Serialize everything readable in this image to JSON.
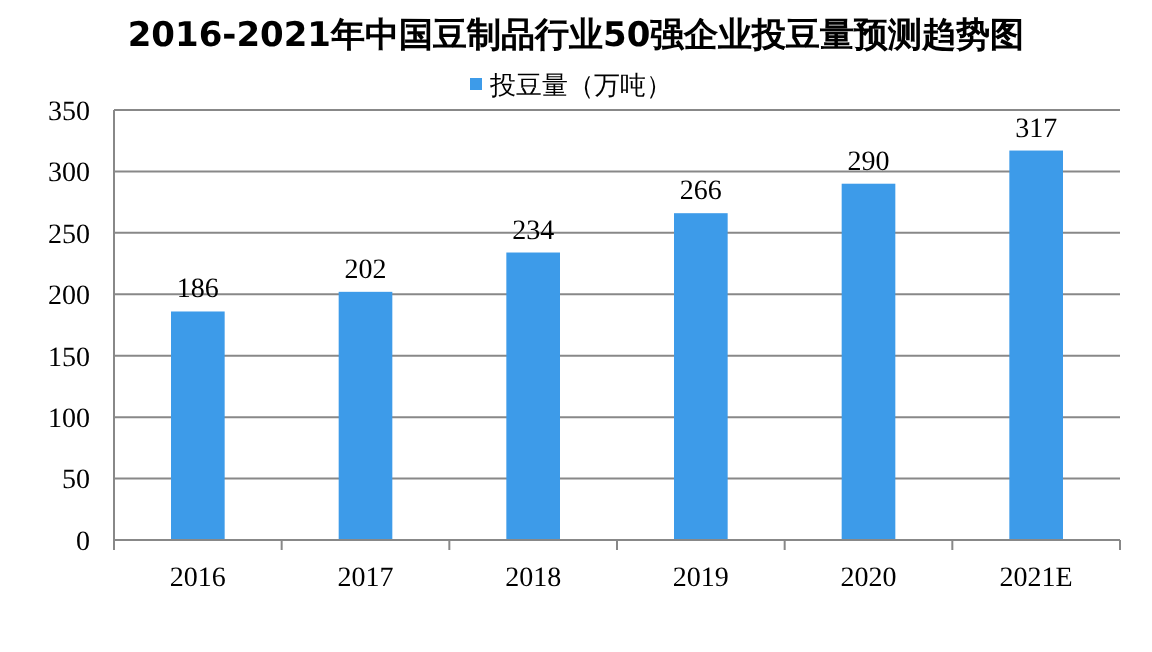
{
  "chart_data": {
    "type": "bar",
    "title": "2016-2021年中国豆制品行业50强企业投豆量预测趋势图",
    "categories": [
      "2016",
      "2017",
      "2018",
      "2019",
      "2020",
      "2021E"
    ],
    "series": [
      {
        "name": "投豆量（万吨）",
        "color": "#3d9be9",
        "values": [
          186,
          202,
          234,
          266,
          290,
          317
        ]
      }
    ],
    "ylim": [
      0,
      350
    ],
    "yticks": [
      0,
      50,
      100,
      150,
      200,
      250,
      300,
      350
    ],
    "grid": "y",
    "legend": "top",
    "data_labels": true
  }
}
